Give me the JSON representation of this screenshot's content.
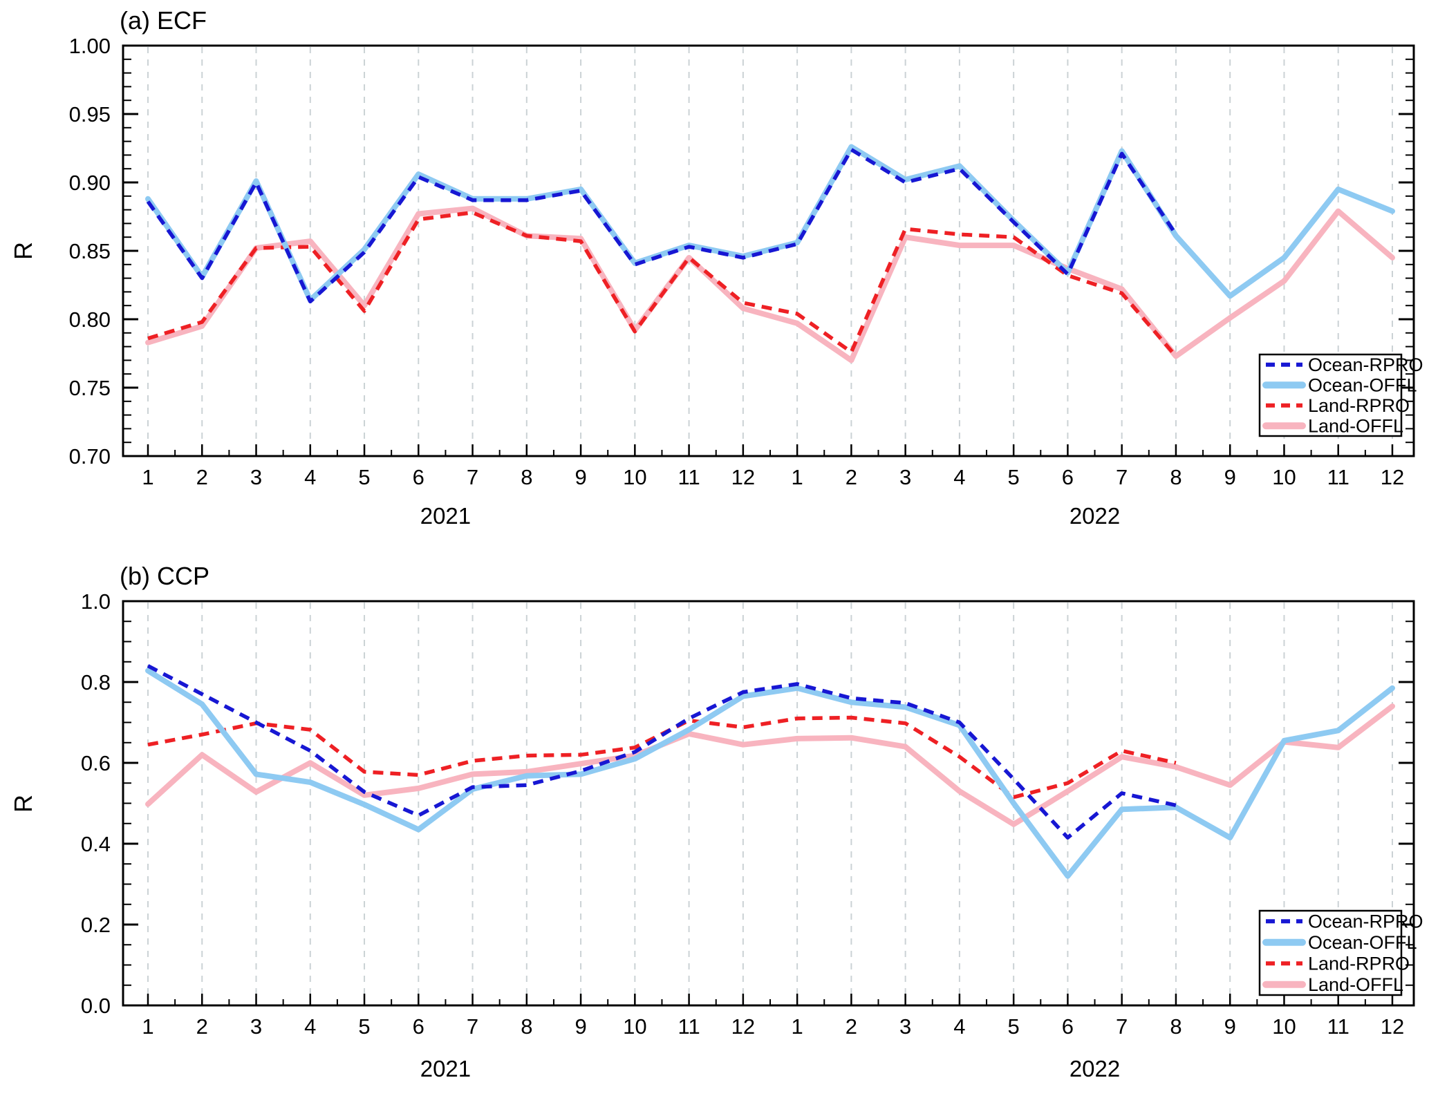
{
  "page": {
    "background": "#ffffff"
  },
  "chart_data": [
    {
      "type": "line",
      "panel": "a",
      "title": "(a) ECF",
      "ylabel": "R",
      "ylim": [
        0.7,
        1.0
      ],
      "ytick_values": [
        1.0,
        0.95,
        0.9,
        0.85,
        0.8,
        0.75,
        0.7
      ],
      "ytick_labels": [
        "1.00",
        "0.95",
        "0.90",
        "0.85",
        "0.80",
        "0.75",
        "0.70"
      ],
      "y_minor_step": 0.01,
      "x_categories": [
        "1",
        "2",
        "3",
        "4",
        "5",
        "6",
        "7",
        "8",
        "9",
        "10",
        "11",
        "12",
        "1",
        "2",
        "3",
        "4",
        "5",
        "6",
        "7",
        "8",
        "9",
        "10",
        "11",
        "12"
      ],
      "year_labels": [
        "2021",
        "2022"
      ],
      "grid": "vertical-dashed",
      "gridline_color": "#cbd2d5",
      "legend_position": "right-middle",
      "series": [
        {
          "name": "Ocean-RPRO",
          "style": "dashed",
          "color": "#1717d3",
          "values": [
            0.886,
            0.83,
            0.9,
            0.813,
            0.849,
            0.904,
            0.887,
            0.887,
            0.894,
            0.84,
            0.853,
            0.845,
            0.855,
            0.924,
            0.9,
            0.91,
            0.871,
            0.833,
            0.921,
            0.862,
            null,
            null,
            null,
            null
          ]
        },
        {
          "name": "Ocean-OFFL",
          "style": "solid",
          "color": "#8ecaf2",
          "values": [
            0.888,
            0.831,
            0.901,
            0.814,
            0.851,
            0.906,
            0.888,
            0.888,
            0.895,
            0.841,
            0.854,
            0.846,
            0.856,
            0.926,
            0.902,
            0.912,
            0.872,
            0.834,
            0.923,
            0.861,
            0.817,
            0.845,
            0.895,
            0.879
          ]
        },
        {
          "name": "Land-RPRO",
          "style": "dashed",
          "color": "#ee2024",
          "values": [
            0.786,
            0.798,
            0.852,
            0.853,
            0.806,
            0.873,
            0.878,
            0.861,
            0.857,
            0.791,
            0.845,
            0.812,
            0.804,
            0.776,
            0.866,
            0.862,
            0.86,
            0.832,
            0.819,
            0.773,
            null,
            null,
            null,
            null
          ]
        },
        {
          "name": "Land-OFFL",
          "style": "solid",
          "color": "#f8b4bf",
          "values": [
            0.783,
            0.795,
            0.852,
            0.857,
            0.81,
            0.877,
            0.881,
            0.861,
            0.859,
            0.792,
            0.845,
            0.808,
            0.797,
            0.77,
            0.86,
            0.854,
            0.854,
            0.837,
            0.822,
            0.773,
            0.801,
            0.828,
            0.879,
            0.845
          ]
        }
      ]
    },
    {
      "type": "line",
      "panel": "b",
      "title": "(b) CCP",
      "ylabel": "R",
      "ylim": [
        0.0,
        1.0
      ],
      "ytick_values": [
        1.0,
        0.8,
        0.6,
        0.4,
        0.2,
        0.0
      ],
      "ytick_labels": [
        "1.0",
        "0.8",
        "0.6",
        "0.4",
        "0.2",
        "0.0"
      ],
      "y_minor_step": 0.05,
      "x_categories": [
        "1",
        "2",
        "3",
        "4",
        "5",
        "6",
        "7",
        "8",
        "9",
        "10",
        "11",
        "12",
        "1",
        "2",
        "3",
        "4",
        "5",
        "6",
        "7",
        "8",
        "9",
        "10",
        "11",
        "12"
      ],
      "year_labels": [
        "2021",
        "2022"
      ],
      "grid": "vertical-dashed",
      "gridline_color": "#cbd2d5",
      "legend_position": "bottom-right",
      "series": [
        {
          "name": "Ocean-RPRO",
          "style": "dashed",
          "color": "#1717d3",
          "values": [
            0.84,
            0.77,
            0.7,
            0.63,
            0.528,
            0.47,
            0.54,
            0.545,
            0.58,
            0.627,
            0.71,
            0.775,
            0.795,
            0.76,
            0.748,
            0.7,
            0.56,
            0.415,
            0.525,
            0.495,
            null,
            null,
            null,
            null
          ]
        },
        {
          "name": "Ocean-OFFL",
          "style": "solid",
          "color": "#8ecaf2",
          "values": [
            0.828,
            0.745,
            0.572,
            0.552,
            0.497,
            0.435,
            0.535,
            0.568,
            0.572,
            0.61,
            0.682,
            0.765,
            0.785,
            0.75,
            0.738,
            0.693,
            0.5,
            0.32,
            0.485,
            0.49,
            0.415,
            0.655,
            0.68,
            0.785
          ]
        },
        {
          "name": "Land-RPRO",
          "style": "dashed",
          "color": "#ee2024",
          "values": [
            0.645,
            0.67,
            0.698,
            0.682,
            0.578,
            0.57,
            0.605,
            0.618,
            0.62,
            0.638,
            0.705,
            0.688,
            0.71,
            0.712,
            0.698,
            0.615,
            0.515,
            0.55,
            0.63,
            0.6,
            null,
            null,
            null,
            null
          ]
        },
        {
          "name": "Land-OFFL",
          "style": "solid",
          "color": "#f8b4bf",
          "values": [
            0.498,
            0.62,
            0.528,
            0.6,
            0.52,
            0.537,
            0.572,
            0.578,
            0.598,
            0.618,
            0.672,
            0.645,
            0.66,
            0.662,
            0.64,
            0.53,
            0.448,
            0.53,
            0.615,
            0.59,
            0.545,
            0.652,
            0.638,
            0.74
          ]
        }
      ]
    }
  ]
}
